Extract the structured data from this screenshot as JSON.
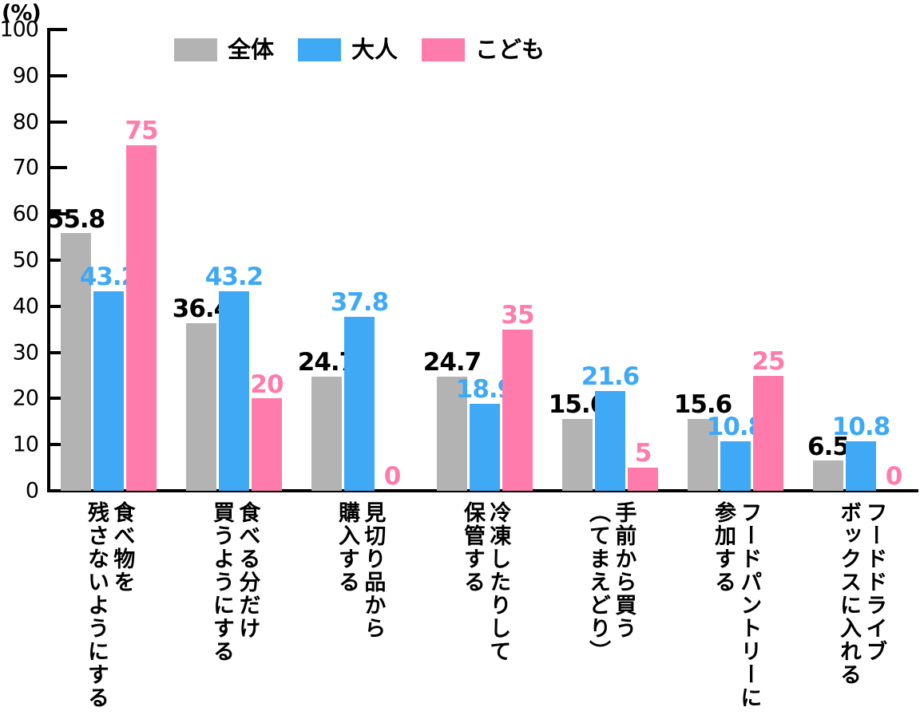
{
  "chart_data": {
    "type": "bar",
    "title": "",
    "unit_label": "(%)",
    "categories": [
      "食べ物を\n残さないようにする",
      "食べる分だけ\n買うようにする",
      "見切り品から\n購入する",
      "冷凍したりして\n保管する",
      "手前から買う\n（てまえどり）",
      "フードパントリーに\n参加する",
      "フードドライブ\nボックスに入れる"
    ],
    "series": [
      {
        "name": "全体",
        "color": "#b3b3b3",
        "label_color": "#000000",
        "values": [
          55.8,
          36.4,
          24.7,
          24.7,
          15.6,
          15.6,
          6.5
        ]
      },
      {
        "name": "大人",
        "color": "#3fa9f5",
        "label_color": "#3fa9f5",
        "values": [
          43.2,
          43.2,
          37.8,
          18.9,
          21.6,
          10.8,
          10.8
        ]
      },
      {
        "name": "こども",
        "color": "#ff7bac",
        "label_color": "#ff7bac",
        "values": [
          75,
          20,
          0,
          35,
          5,
          25,
          0
        ]
      }
    ],
    "ylim": [
      0,
      100
    ],
    "yticks": [
      0,
      10,
      20,
      30,
      40,
      50,
      60,
      70,
      80,
      90,
      100
    ],
    "grid": false,
    "legend_position": "top",
    "axis_color": "#000000"
  }
}
